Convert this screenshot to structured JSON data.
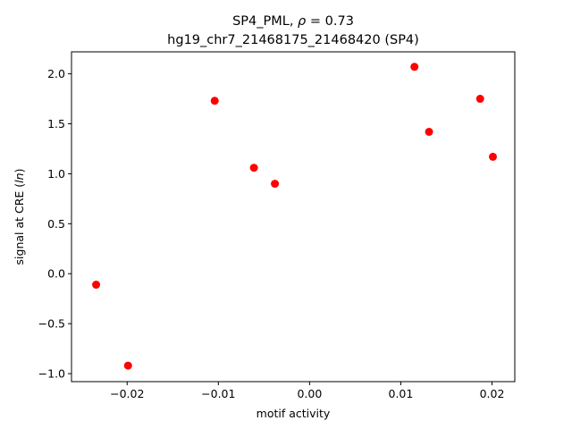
{
  "chart_data": {
    "type": "scatter",
    "title_line1_prefix": "SP4_PML, ",
    "title_line1_rho": "ρ",
    "title_line1_suffix": " = 0.73",
    "title_line2": "hg19_chr7_21468175_21468420 (SP4)",
    "xlabel": "motif activity",
    "ylabel_prefix": "signal at CRE (",
    "ylabel_italic": "ln",
    "ylabel_suffix": ")",
    "xlim": [
      -0.0261,
      0.0225
    ],
    "ylim": [
      -1.08,
      2.22
    ],
    "xticks": [
      -0.02,
      -0.01,
      0.0,
      0.01,
      0.02
    ],
    "xtick_labels": [
      "−0.02",
      "−0.01",
      "0.00",
      "0.01",
      "0.02"
    ],
    "yticks": [
      -1.0,
      -0.5,
      0.0,
      0.5,
      1.0,
      1.5,
      2.0
    ],
    "ytick_labels": [
      "−1.0",
      "−0.5",
      "0.0",
      "0.5",
      "1.0",
      "1.5",
      "2.0"
    ],
    "grid": false,
    "marker_color": "#ff0000",
    "points": [
      {
        "x": -0.0234,
        "y": -0.11
      },
      {
        "x": -0.0199,
        "y": -0.92
      },
      {
        "x": -0.0104,
        "y": 1.73
      },
      {
        "x": -0.0061,
        "y": 1.06
      },
      {
        "x": -0.0038,
        "y": 0.9
      },
      {
        "x": 0.0115,
        "y": 2.07
      },
      {
        "x": 0.0131,
        "y": 1.42
      },
      {
        "x": 0.0187,
        "y": 1.75
      },
      {
        "x": 0.0201,
        "y": 1.17
      }
    ]
  }
}
